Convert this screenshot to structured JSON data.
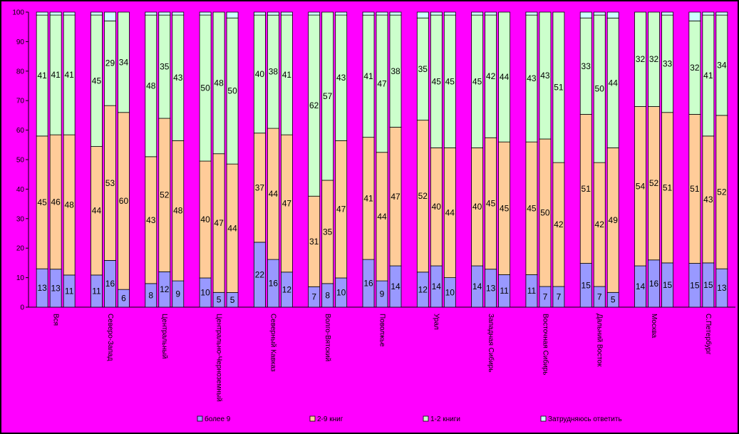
{
  "chart_data": {
    "type": "bar",
    "stacked": true,
    "percent": true,
    "ylim": [
      0,
      100
    ],
    "yticks": [
      0,
      10,
      20,
      30,
      40,
      50,
      60,
      70,
      80,
      90,
      100
    ],
    "grid": false,
    "legend_position": "bottom",
    "background": "#ff00ff",
    "groups": [
      {
        "name": "Вся",
        "bars": [
          [
            13,
            45,
            41,
            1
          ],
          [
            13,
            46,
            41,
            1
          ],
          [
            11,
            48,
            41,
            1
          ]
        ]
      },
      {
        "name": "Северо-Запад",
        "bars": [
          [
            11,
            44,
            45,
            1
          ],
          [
            16,
            53,
            29,
            3
          ],
          [
            6,
            60,
            34,
            0
          ]
        ]
      },
      {
        "name": "Центральный",
        "bars": [
          [
            8,
            43,
            48,
            1
          ],
          [
            12,
            52,
            35,
            1
          ],
          [
            9,
            48,
            43,
            1
          ]
        ]
      },
      {
        "name": "Центрально-Черноземный",
        "bars": [
          [
            10,
            40,
            50,
            1
          ],
          [
            5,
            47,
            48,
            0
          ],
          [
            5,
            44,
            50,
            2
          ]
        ]
      },
      {
        "name": "Северный Кавказ",
        "bars": [
          [
            22,
            37,
            40,
            1
          ],
          [
            16,
            44,
            38,
            1
          ],
          [
            12,
            47,
            41,
            1
          ]
        ]
      },
      {
        "name": "Волго-Вятский",
        "bars": [
          [
            7,
            31,
            62,
            1
          ],
          [
            8,
            35,
            57,
            0
          ],
          [
            10,
            47,
            43,
            1
          ]
        ]
      },
      {
        "name": "Поволжье",
        "bars": [
          [
            16,
            41,
            41,
            1
          ],
          [
            9,
            44,
            47,
            1
          ],
          [
            14,
            47,
            38,
            1
          ]
        ]
      },
      {
        "name": "Урал",
        "bars": [
          [
            12,
            52,
            35,
            2
          ],
          [
            14,
            40,
            45,
            1
          ],
          [
            10,
            44,
            45,
            1
          ]
        ]
      },
      {
        "name": "Западная Сибирь",
        "bars": [
          [
            14,
            40,
            45,
            1
          ],
          [
            13,
            45,
            42,
            1
          ],
          [
            11,
            45,
            44,
            0
          ]
        ]
      },
      {
        "name": "Восточная Сибирь",
        "bars": [
          [
            11,
            45,
            43,
            1
          ],
          [
            7,
            50,
            43,
            0
          ],
          [
            7,
            42,
            51,
            0
          ]
        ]
      },
      {
        "name": "Дальний Восток",
        "bars": [
          [
            15,
            51,
            33,
            2
          ],
          [
            7,
            42,
            50,
            1
          ],
          [
            5,
            49,
            44,
            2
          ]
        ]
      },
      {
        "name": "Москва",
        "bars": [
          [
            14,
            54,
            32,
            0
          ],
          [
            16,
            52,
            32,
            0
          ],
          [
            15,
            51,
            33,
            1
          ]
        ]
      },
      {
        "name": "С.Петербург",
        "bars": [
          [
            15,
            51,
            32,
            3
          ],
          [
            15,
            43,
            41,
            1
          ],
          [
            13,
            52,
            34,
            1
          ]
        ]
      }
    ],
    "series": [
      {
        "name": "более 9",
        "color": "#9999ff"
      },
      {
        "name": "2-9 книг",
        "color": "#ffcc99"
      },
      {
        "name": "1-2 книги",
        "color": "#ccffcc"
      },
      {
        "name": "Затрудняюсь ответить",
        "color": "#ccffff"
      }
    ],
    "value_labels_series": [
      0,
      1,
      2
    ]
  }
}
